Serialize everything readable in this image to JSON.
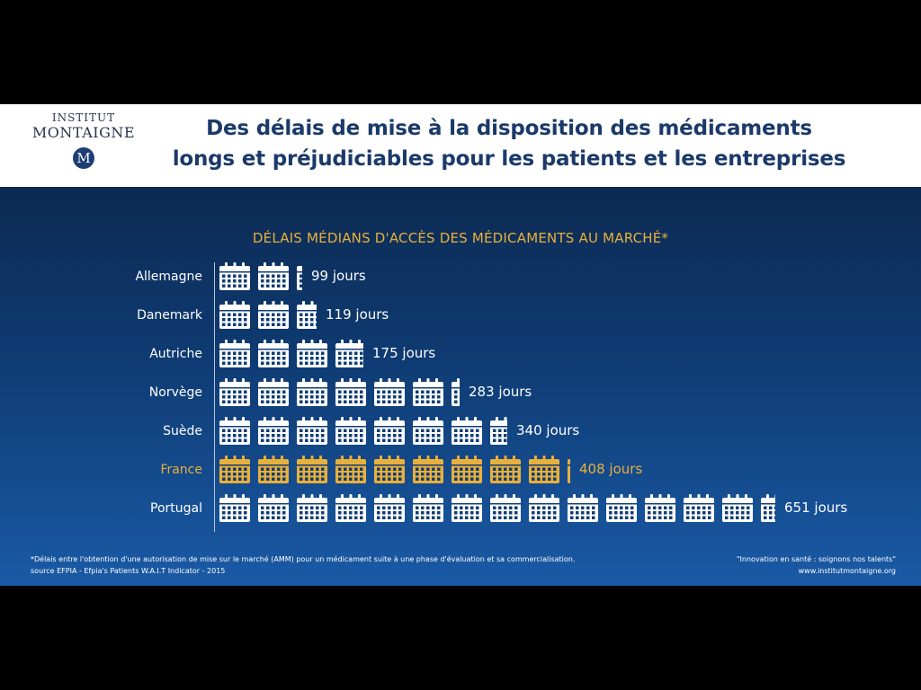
{
  "header": {
    "logo_line1": "INSTITUT",
    "logo_line2": "MONTAIGNE",
    "logo_emblem": "M",
    "title_line1": "Des délais de mise à la disposition des médicaments",
    "title_line2": "longs et préjudiciables pour les patients et les entreprises"
  },
  "chart_data": {
    "type": "bar",
    "title": "DÉLAIS MÉDIANS D'ACCÈS DES MÉDICAMENTS AU MARCHÉ*",
    "unit_label": "jours",
    "icon": "calendar-icon",
    "days_per_icon": 45,
    "categories": [
      "Allemagne",
      "Danemark",
      "Autriche",
      "Norvège",
      "Suède",
      "France",
      "Portugal"
    ],
    "values": [
      99,
      119,
      175,
      283,
      340,
      408,
      651
    ],
    "value_labels": [
      "99 jours",
      "119 jours",
      "175 jours",
      "283 jours",
      "340 jours",
      "408 jours",
      "651 jours"
    ],
    "highlight": "France",
    "colors": {
      "default": "#ffffff",
      "highlight": "#e9b03b"
    }
  },
  "footer": {
    "footnote_line1": "*Délais entre l'obtention d'une autorisation de mise sur le marché (AMM) pour un médicament suite à une phase d'évaluation et sa commercialisation.",
    "footnote_line2": "source EFPIA - Efpia's Patients W.A.I.T Indicator - 2015",
    "tagline": "\"Innovation en santé : soignons nos talents\"",
    "website": "www.institutmontaigne.org"
  }
}
